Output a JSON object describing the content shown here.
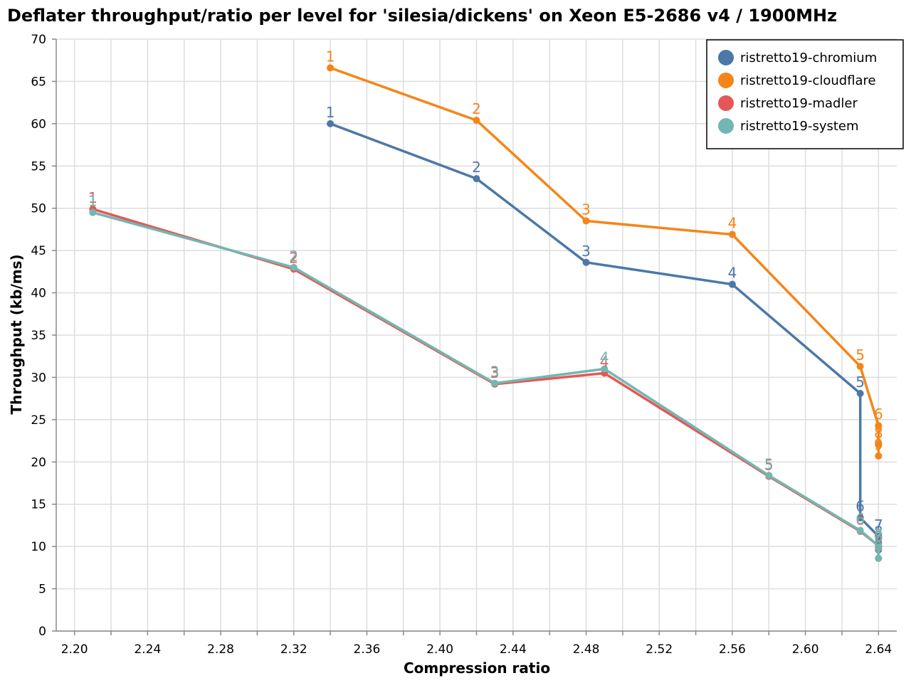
{
  "chart_data": {
    "type": "line",
    "title": "Deflater throughput/ratio per level for 'silesia/dickens' on Xeon E5-2686 v4 / 1900MHz",
    "xlabel": "Compression ratio",
    "ylabel": "Throughput (kb/ms)",
    "xlim": [
      2.19,
      2.65
    ],
    "ylim": [
      0,
      70
    ],
    "xticks": [
      2.2,
      2.24,
      2.28,
      2.32,
      2.36,
      2.4,
      2.44,
      2.48,
      2.52,
      2.56,
      2.6,
      2.64
    ],
    "xtick_labels": [
      "2.20",
      "2.24",
      "2.28",
      "2.32",
      "2.36",
      "2.40",
      "2.44",
      "2.48",
      "2.52",
      "2.56",
      "2.60",
      "2.64"
    ],
    "yticks": [
      0,
      5,
      10,
      15,
      20,
      25,
      30,
      35,
      40,
      45,
      50,
      55,
      60,
      65,
      70
    ],
    "ytick_labels": [
      "0",
      "5",
      "10",
      "15",
      "20",
      "25",
      "30",
      "35",
      "40",
      "45",
      "50",
      "55",
      "60",
      "65",
      "70"
    ],
    "grid": true,
    "legend_position": "top-right",
    "series": [
      {
        "name": "ristretto19-chromium",
        "color": "#4c78a8",
        "points": [
          {
            "level": "1",
            "x": 2.34,
            "y": 60.0
          },
          {
            "level": "2",
            "x": 2.42,
            "y": 53.5
          },
          {
            "level": "3",
            "x": 2.48,
            "y": 43.6
          },
          {
            "level": "4",
            "x": 2.56,
            "y": 41.0
          },
          {
            "level": "5",
            "x": 2.63,
            "y": 28.1
          },
          {
            "level": "6",
            "x": 2.63,
            "y": 13.4
          },
          {
            "level": "7",
            "x": 2.64,
            "y": 11.2
          },
          {
            "level": "8",
            "x": 2.64,
            "y": 10.4
          },
          {
            "level": "9",
            "x": 2.64,
            "y": 9.6
          }
        ]
      },
      {
        "name": "ristretto19-cloudflare",
        "color": "#f58518",
        "points": [
          {
            "level": "1",
            "x": 2.34,
            "y": 66.6
          },
          {
            "level": "2",
            "x": 2.42,
            "y": 60.4
          },
          {
            "level": "3",
            "x": 2.48,
            "y": 48.5
          },
          {
            "level": "4",
            "x": 2.56,
            "y": 46.9
          },
          {
            "level": "5",
            "x": 2.63,
            "y": 31.3
          },
          {
            "level": "6",
            "x": 2.64,
            "y": 24.3
          },
          {
            "level": "7",
            "x": 2.64,
            "y": 22.0
          },
          {
            "level": "8",
            "x": 2.64,
            "y": 22.1
          },
          {
            "level": "9",
            "x": 2.64,
            "y": 20.7
          }
        ]
      },
      {
        "name": "ristretto19-madler",
        "color": "#e45756",
        "points": [
          {
            "level": "1",
            "x": 2.21,
            "y": 49.9
          },
          {
            "level": "2",
            "x": 2.32,
            "y": 42.8
          },
          {
            "level": "3",
            "x": 2.43,
            "y": 29.2
          },
          {
            "level": "4",
            "x": 2.49,
            "y": 30.5
          },
          {
            "level": "5",
            "x": 2.58,
            "y": 18.3
          },
          {
            "level": "6",
            "x": 2.63,
            "y": 11.8
          },
          {
            "level": "7",
            "x": 2.64,
            "y": 10.1
          },
          {
            "level": "8",
            "x": 2.64,
            "y": 9.8
          },
          {
            "level": "9",
            "x": 2.64,
            "y": 8.6
          }
        ]
      },
      {
        "name": "ristretto19-system",
        "color": "#72b7b2",
        "points": [
          {
            "level": "1",
            "x": 2.21,
            "y": 49.5
          },
          {
            "level": "2",
            "x": 2.32,
            "y": 43.0
          },
          {
            "level": "3",
            "x": 2.43,
            "y": 29.3
          },
          {
            "level": "4",
            "x": 2.49,
            "y": 31.0
          },
          {
            "level": "5",
            "x": 2.58,
            "y": 18.4
          },
          {
            "level": "6",
            "x": 2.63,
            "y": 11.9
          },
          {
            "level": "7",
            "x": 2.64,
            "y": 10.1
          },
          {
            "level": "8",
            "x": 2.64,
            "y": 9.9
          },
          {
            "level": "9",
            "x": 2.64,
            "y": 8.6
          }
        ]
      }
    ]
  }
}
